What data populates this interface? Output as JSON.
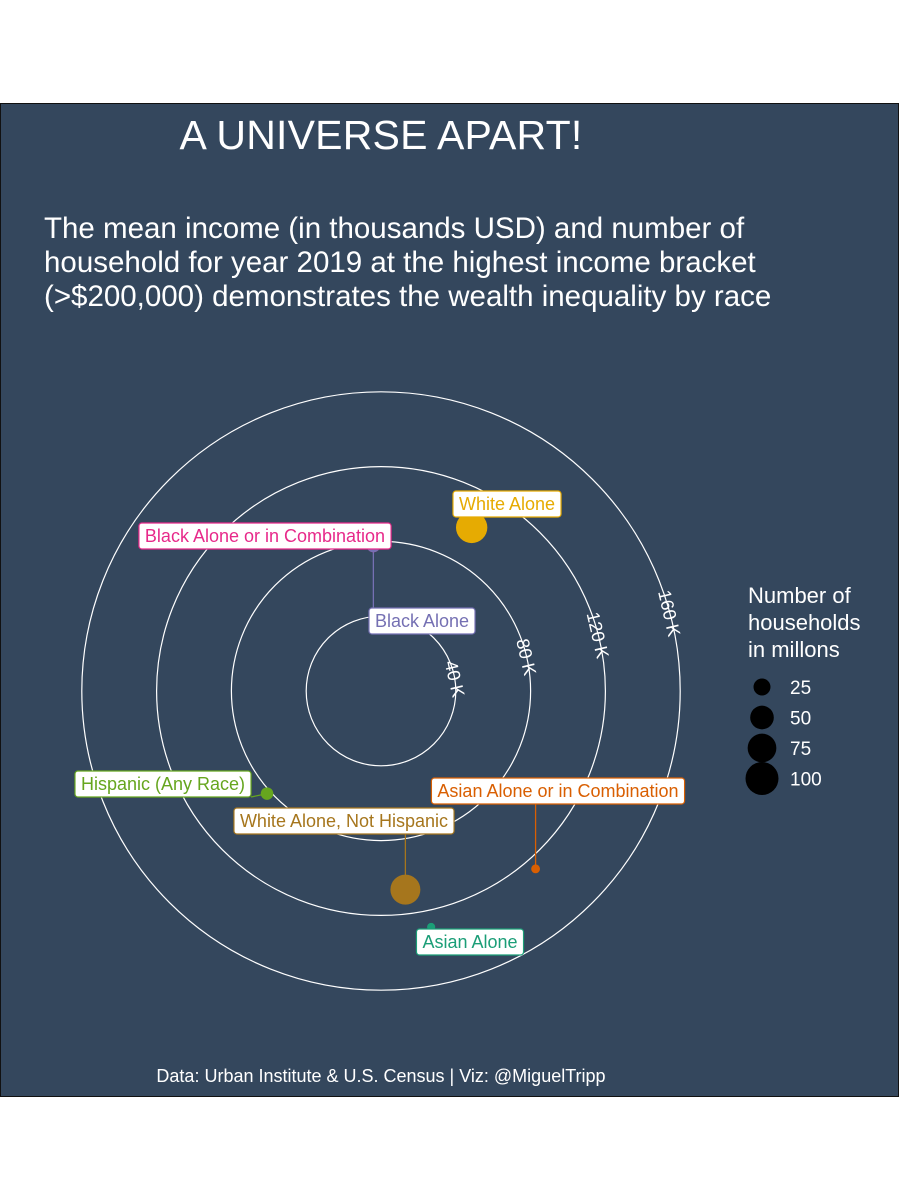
{
  "chart_data": {
    "type": "scatter",
    "coord": "polar",
    "title": "A UNIVERSE APART!",
    "subtitle": "The mean income (in thousands USD) and number of household for year 2019 at the highest income bracket (>$200,000) demonstrates the wealth inequality by race",
    "caption": "Data: Urban Institute & U.S. Census | Viz: @MiguelTripp",
    "rings": [
      {
        "value": 40,
        "label": "40 K"
      },
      {
        "value": 80,
        "label": "80 K"
      },
      {
        "value": 120,
        "label": "120 K"
      },
      {
        "value": 160,
        "label": "160 K"
      }
    ],
    "grid": true,
    "legend": {
      "title": "Number of\nhouseholds\nin millons",
      "position": "right",
      "entries": [
        {
          "label": "25",
          "value": 25
        },
        {
          "label": "50",
          "value": 50
        },
        {
          "label": "75",
          "value": 75
        },
        {
          "label": "100",
          "value": 100
        }
      ]
    },
    "series": [
      {
        "name": "White Alone",
        "income_k": 100,
        "households_millions": 90,
        "color": "#e6ab02"
      },
      {
        "name": "Black Alone or in Combination",
        "income_k": 78,
        "households_millions": 16,
        "color": "#e7298a"
      },
      {
        "name": "Black Alone",
        "income_k": 78,
        "households_millions": 16,
        "color": "#7570b3"
      },
      {
        "name": "Hispanic (Any Race)",
        "income_k": 82,
        "households_millions": 13,
        "color": "#66a61e"
      },
      {
        "name": "White Alone, Not Hispanic",
        "income_k": 107,
        "households_millions": 82,
        "color": "#a6761d"
      },
      {
        "name": "Asian Alone or in Combination",
        "income_k": 126,
        "households_millions": 6,
        "color": "#d95f02"
      },
      {
        "name": "Asian Alone",
        "income_k": 129,
        "households_millions": 5,
        "color": "#1b9e77"
      }
    ]
  }
}
